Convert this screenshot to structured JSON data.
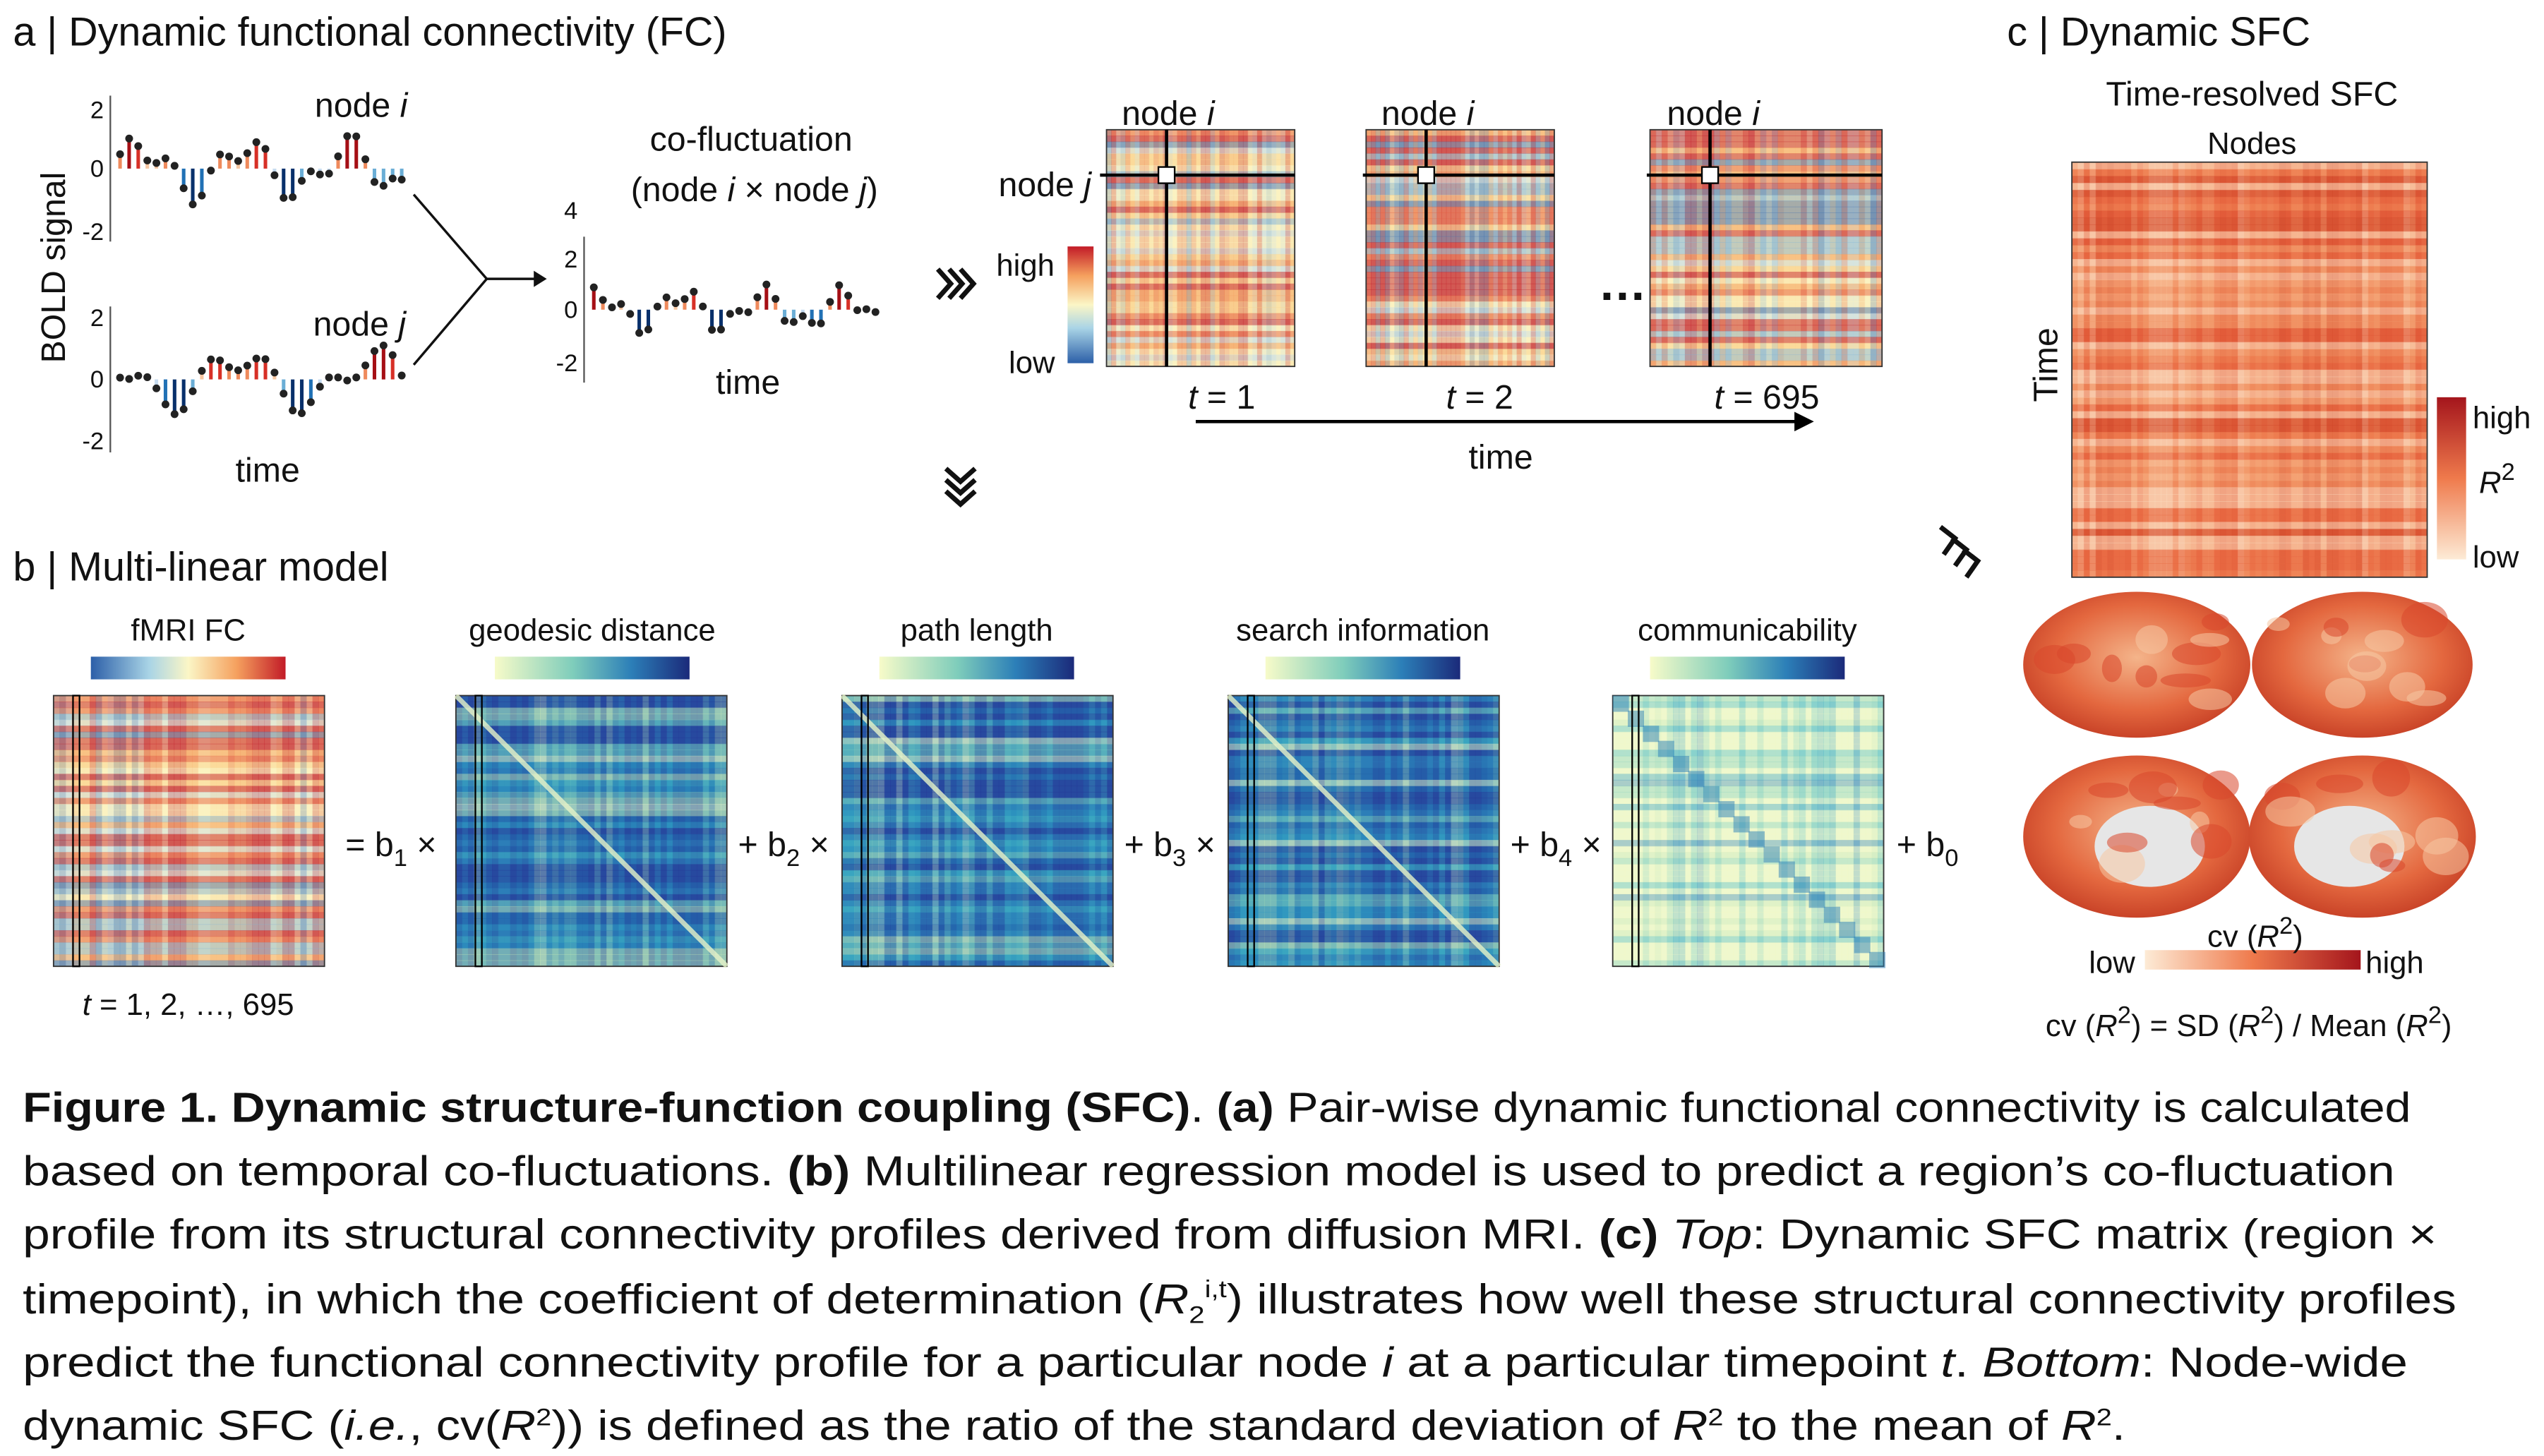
{
  "panel_a": {
    "label": "a | Dynamic functional connectivity (FC)",
    "ylabel": "BOLD signal",
    "node_i": [
      "node ",
      "i"
    ],
    "node_j": [
      "node ",
      "j"
    ],
    "time": "time",
    "top_ticks": [
      "2",
      "0",
      "-2"
    ],
    "bottom_ticks": [
      "2",
      "0",
      "-2"
    ],
    "cofluct_title": "co-fluctuation",
    "cofluct_sub": [
      "(node ",
      "i",
      " × node ",
      "j",
      ")"
    ],
    "cofluct_ticks": [
      "4",
      "2",
      "0",
      "-2"
    ],
    "cofluct_time": "time",
    "scale_high": "high",
    "scale_low": "low",
    "matrix_labels": [
      [
        "node ",
        "i"
      ],
      [
        "node ",
        "i"
      ],
      [
        "node ",
        "i"
      ]
    ],
    "row_label": [
      "node ",
      "j"
    ],
    "time_labels": [
      [
        "t",
        " = 1"
      ],
      [
        "t",
        " = 2"
      ],
      [
        "t",
        " = 695"
      ]
    ],
    "ellipsis": "…",
    "time_axis": "time"
  },
  "panel_b": {
    "label": "b | Multi-linear model",
    "titles": [
      "fMRI FC",
      "geodesic distance",
      "path length",
      "search information",
      "communicability"
    ],
    "operators": [
      [
        "= b",
        "1",
        " ×"
      ],
      [
        "+ b",
        "2",
        " ×"
      ],
      [
        "+ b",
        "3",
        " ×"
      ],
      [
        "+ b",
        "4",
        " ×"
      ],
      [
        "+ b",
        "0"
      ]
    ],
    "time_caption": [
      "t",
      " = 1, 2, …, 695"
    ]
  },
  "panel_c": {
    "label": "c | Dynamic SFC",
    "title": "Time-resolved SFC",
    "xlabel": "Nodes",
    "ylabel": "Time",
    "scale_high": "high",
    "scale_mid": [
      "R",
      "2"
    ],
    "scale_low": "low",
    "cv_title": [
      "cv (",
      "R",
      "2",
      ")"
    ],
    "cv_low": "low",
    "cv_high": "high",
    "formula": [
      "cv (",
      "R",
      "2",
      ") = SD (",
      "R",
      "2",
      ") / Mean (",
      "R",
      "2",
      ")"
    ]
  },
  "caption": [
    [
      "Figure 1. Dynamic structure-function coupling (SFC)",
      ". ",
      "(a)",
      " Pair-wise dynamic functional connectivity is calculated"
    ],
    [
      "based on temporal co-fluctuations. ",
      "(b)",
      " Multilinear regression model is used to predict a region’s co-fluctuation"
    ],
    [
      "profile from its structural connectivity profiles derived from diffusion MRI. ",
      "(c)",
      " ",
      "Top",
      ": Dynamic SFC matrix (region ×"
    ],
    [
      "timepoint), in which the coefficient of determination (",
      "R",
      "2",
      "i,t",
      ") illustrates how well these structural connectivity profiles"
    ],
    [
      "predict the functional connectivity profile for a particular node ",
      "i",
      " at a particular timepoint ",
      "t",
      ". ",
      "Bottom",
      ": Node-wide"
    ],
    [
      "dynamic SFC (",
      "i.e.",
      ", cv(",
      "R",
      "2",
      ")) is defined as the ratio of the standard deviation of ",
      "R",
      "2",
      " to the mean of ",
      "R",
      "2",
      "."
    ]
  ]
}
